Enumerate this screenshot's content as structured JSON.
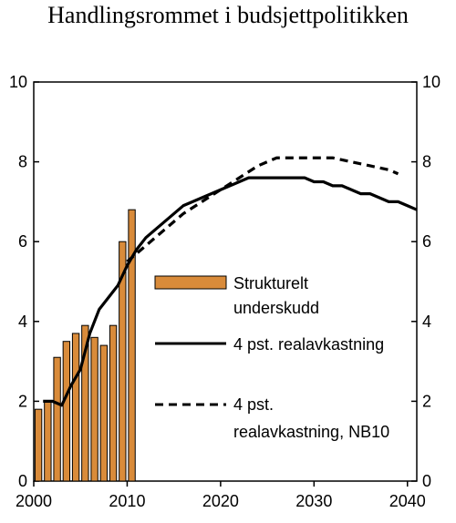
{
  "chart_data": {
    "type": "bar+line",
    "title": "Handlingsrommet i budsjettpolitikken",
    "xlabel": "",
    "ylabel": "",
    "xlim": [
      2000,
      2041
    ],
    "ylim": [
      0,
      10
    ],
    "x_ticks": [
      2000,
      2010,
      2020,
      2030,
      2040
    ],
    "y_ticks": [
      0,
      2,
      4,
      6,
      8,
      10
    ],
    "grid": false,
    "legend_position": "center-right",
    "series": [
      {
        "name": "Strukturelt underskudd",
        "type": "bar",
        "color": "#d98b3a",
        "x": [
          2000,
          2001,
          2002,
          2003,
          2004,
          2005,
          2006,
          2007,
          2008,
          2009,
          2010
        ],
        "values": [
          1.8,
          2.0,
          3.1,
          3.5,
          3.7,
          3.9,
          3.6,
          3.4,
          3.9,
          6.0,
          6.8
        ]
      },
      {
        "name": "4 pst. realavkastning",
        "type": "line",
        "style": "solid",
        "color": "#000000",
        "x": [
          2001,
          2002,
          2003,
          2004,
          2005,
          2006,
          2007,
          2008,
          2009,
          2010,
          2011,
          2012,
          2013,
          2014,
          2015,
          2016,
          2017,
          2018,
          2019,
          2020,
          2021,
          2022,
          2023,
          2024,
          2025,
          2026,
          2027,
          2028,
          2029,
          2030,
          2031,
          2032,
          2033,
          2034,
          2035,
          2036,
          2037,
          2038,
          2039,
          2040,
          2041
        ],
        "values": [
          2.0,
          2.0,
          1.9,
          2.4,
          2.8,
          3.7,
          4.3,
          4.6,
          4.9,
          5.4,
          5.8,
          6.1,
          6.3,
          6.5,
          6.7,
          6.9,
          7.0,
          7.1,
          7.2,
          7.3,
          7.4,
          7.5,
          7.6,
          7.6,
          7.6,
          7.6,
          7.6,
          7.6,
          7.6,
          7.5,
          7.5,
          7.4,
          7.4,
          7.3,
          7.2,
          7.2,
          7.1,
          7.0,
          7.0,
          6.9,
          6.8
        ]
      },
      {
        "name": "4 pst. realavkastning, NB10",
        "type": "line",
        "style": "dashed",
        "color": "#000000",
        "x": [
          2010,
          2012,
          2014,
          2016,
          2018,
          2020,
          2022,
          2024,
          2026,
          2028,
          2030,
          2032,
          2034,
          2036,
          2038,
          2039
        ],
        "values": [
          5.5,
          5.9,
          6.3,
          6.7,
          7.0,
          7.3,
          7.6,
          7.9,
          8.1,
          8.1,
          8.1,
          8.1,
          8.0,
          7.9,
          7.8,
          7.7
        ]
      }
    ],
    "legend_labels": {
      "bars_line1": "Strukturelt",
      "bars_line2": "underskudd",
      "solid": "4 pst. realavkastning",
      "dashed_line1": "4 pst.",
      "dashed_line2": "realavkastning, NB10"
    }
  }
}
